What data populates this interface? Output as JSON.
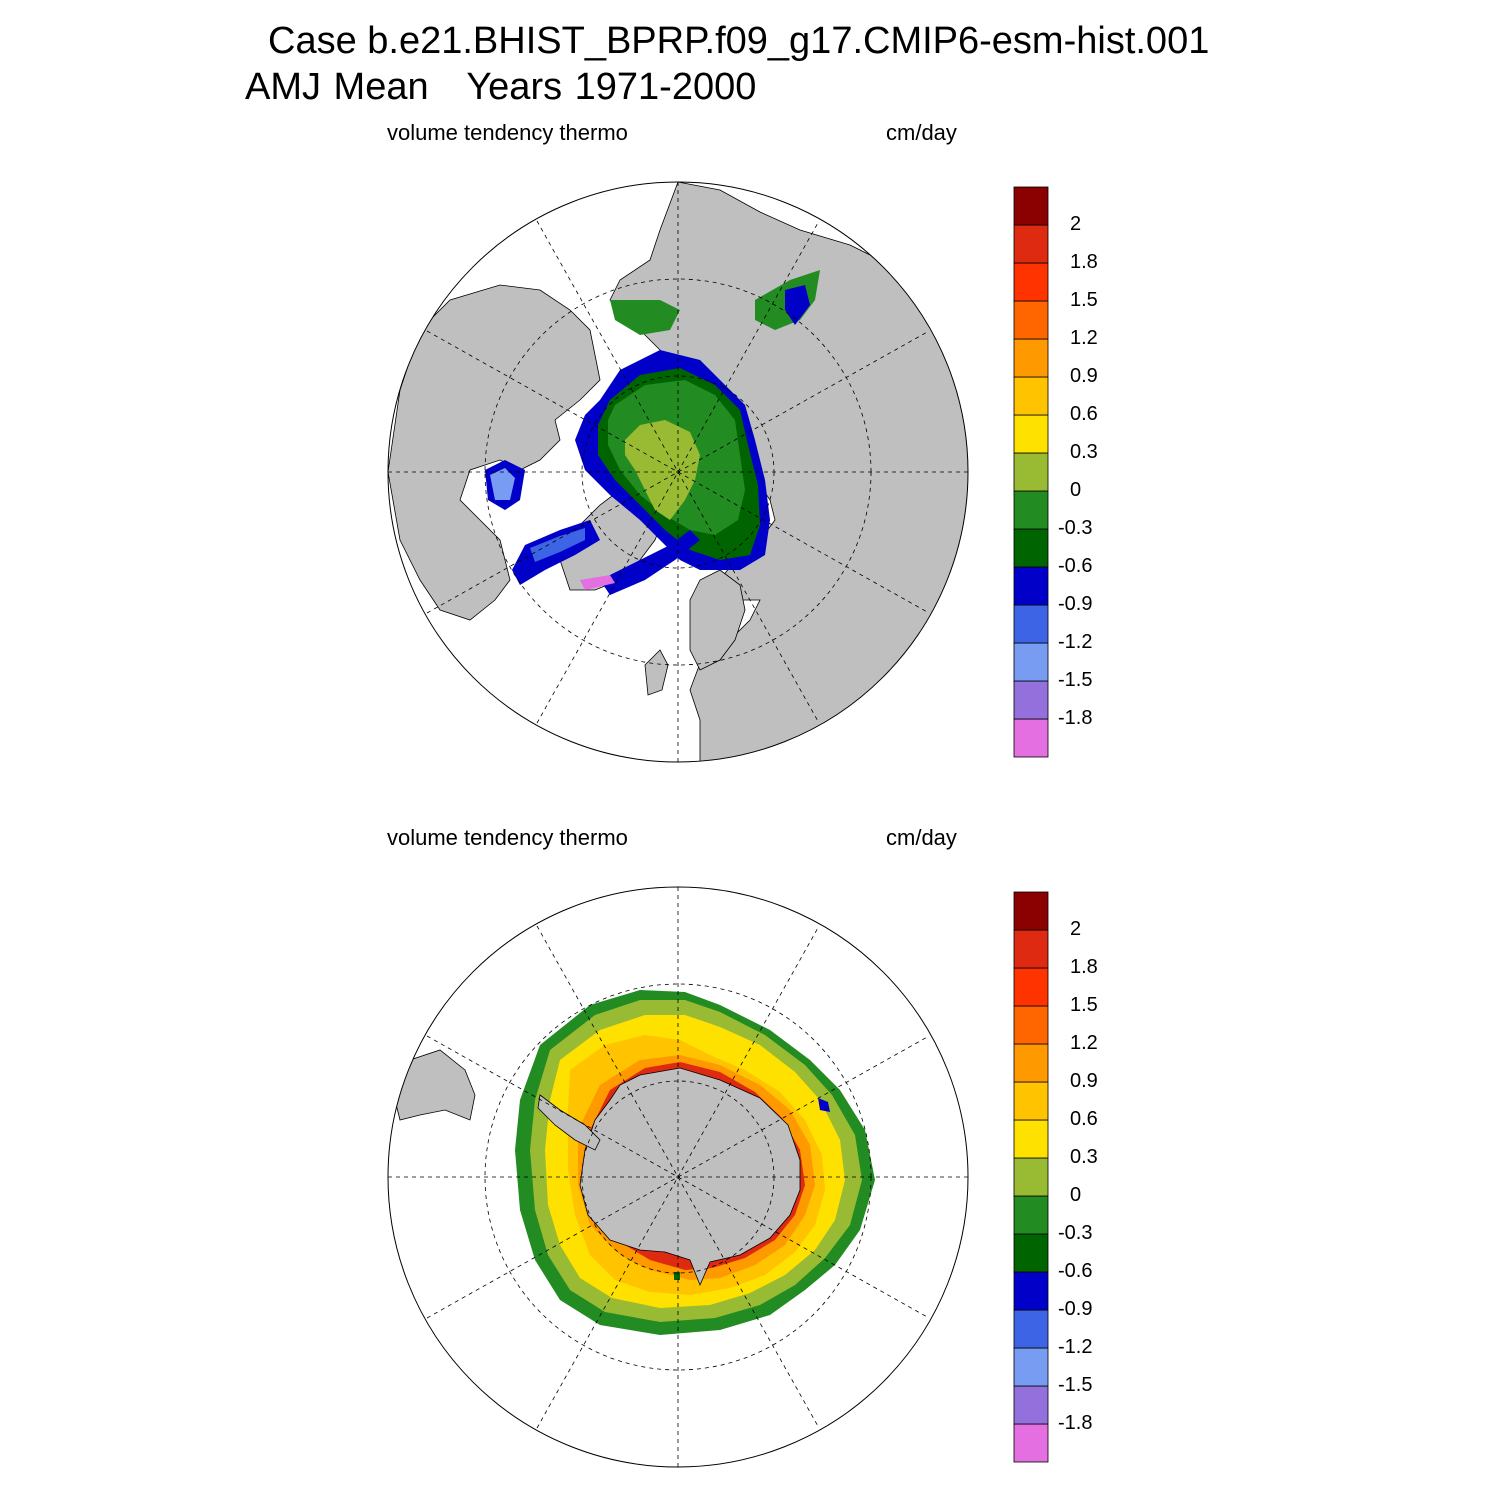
{
  "header": {
    "case_line": "Case b.e21.BHIST_BPRP.f09_g17.CMIP6-esm-hist.001",
    "season": "AMJ Mean",
    "years": "Years 1971-2000"
  },
  "panels": [
    {
      "hemisphere": "Northern Hemisphere",
      "variable": "volume tendency thermo",
      "units": "cm/day"
    },
    {
      "hemisphere": "Southern Hemisphere",
      "variable": "volume tendency thermo",
      "units": "cm/day"
    }
  ],
  "colorbar": {
    "colors": [
      "#e46fe0",
      "#9370db",
      "#789cf2",
      "#3c64e5",
      "#0000c8",
      "#006400",
      "#228b22",
      "#99bb33",
      "#ffe100",
      "#ffc300",
      "#ff9900",
      "#ff6600",
      "#ff3300",
      "#dd2a11",
      "#8b0000"
    ],
    "labels": [
      "-1.8",
      "-1.5",
      "-1.2",
      "-0.9",
      "-0.6",
      "-0.3",
      "0",
      "0.3",
      "0.6",
      "0.9",
      "1.2",
      "1.5",
      "1.8",
      "2"
    ]
  },
  "colors": {
    "land": "#bfbfbf",
    "ocean_no_ice": "#ffffff",
    "grid_line": "#000000"
  }
}
